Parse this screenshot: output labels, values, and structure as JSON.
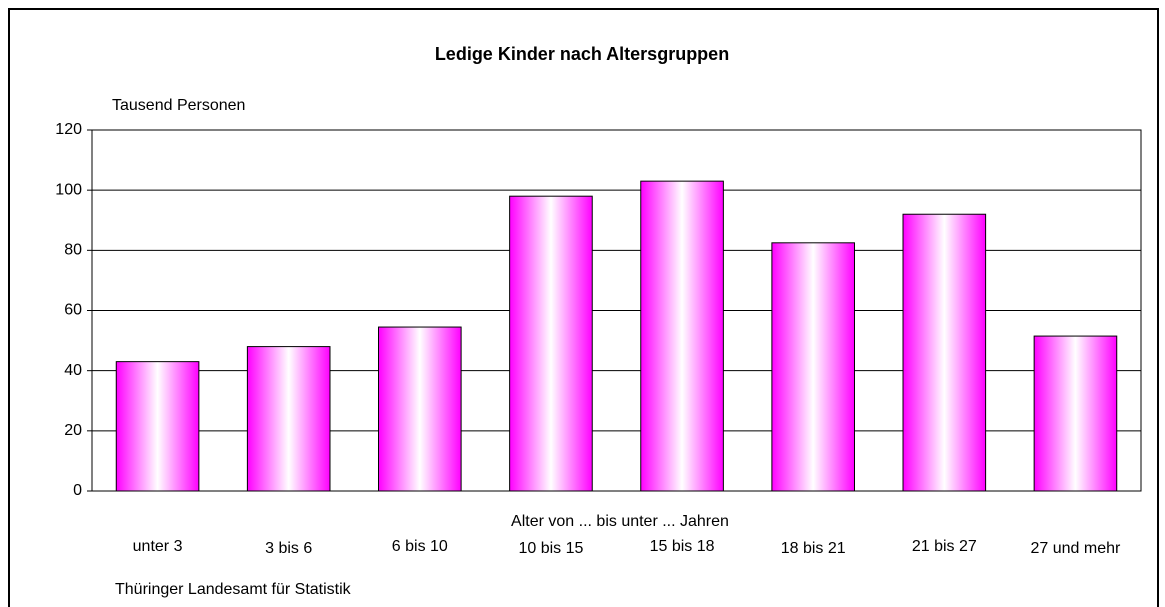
{
  "chart_data": {
    "type": "bar",
    "title": "Ledige Kinder nach Altersgruppen",
    "y_label": "Tausend Personen",
    "x_label": "Alter von ... bis unter ... Jahren",
    "source": "Thüringer Landesamt für Statistik",
    "categories": [
      "unter 3",
      "3 bis 6",
      "6 bis 10",
      "10 bis 15",
      "15 bis 18",
      "18 bis 21",
      "21 bis 27",
      "27 und mehr"
    ],
    "values": [
      43,
      48,
      54.5,
      98,
      103,
      82.5,
      92,
      51.5
    ],
    "color": "#ff00ff",
    "ylim": [
      0,
      120
    ],
    "yticks": [
      0,
      20,
      40,
      60,
      80,
      100,
      120
    ],
    "grid": true
  }
}
